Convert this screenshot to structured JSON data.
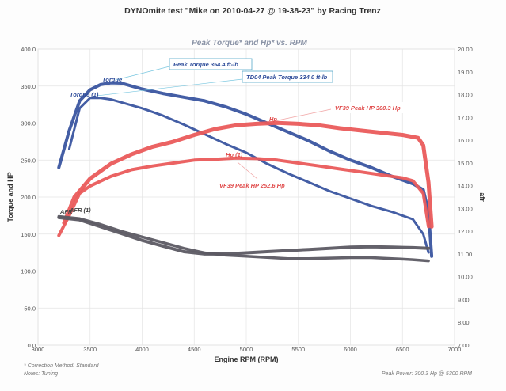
{
  "title": "DYNOmite test \"Mike on 2010-04-27 @ 19-38-23\" by Racing Trenz",
  "subtitle": "Peak Torque* and Hp* vs. RPM",
  "footer": {
    "correction": "* Correction Method: Standard",
    "notes": "Notes: Tuning",
    "peak_power": "Peak Power: 300.3 Hp @ 5300 RPM"
  },
  "annotations": {
    "peak_torque": "Peak Torque 354.4 ft-lb",
    "td04_peak_torque": "TD04 Peak Torque 334.0 ft-lb",
    "vf39_peak_hp": "VF39 Peak HP 300.3 Hp",
    "vf39_peak_hp_2": "VF39 Peak HP 252.6 Hp",
    "torque_label": "Torque",
    "torque1_label": "Torque (1)",
    "hp_label": "Hp",
    "hp1_label": "Hp (1)",
    "afr_label": "AFR",
    "afr1_label": "AFR (1)"
  },
  "chart_data": {
    "type": "line",
    "title": "Peak Torque* and Hp* vs. RPM",
    "xlabel": "Engine RPM (RPM)",
    "ylabel": "Torque and HP",
    "y2label": "afr",
    "xlim": [
      3000,
      7000
    ],
    "ylim": [
      0,
      400
    ],
    "y2lim": [
      7,
      20
    ],
    "xticks": [
      "3000",
      "3500",
      "4000",
      "4500",
      "5000",
      "5500",
      "6000",
      "6500",
      "7000"
    ],
    "yticks": [
      "0.0",
      "50.0",
      "100.0",
      "150.0",
      "200.0",
      "250.0",
      "300.0",
      "350.0",
      "400.0"
    ],
    "y2ticks": [
      "7.00",
      "8.00",
      "9.00",
      "10.00",
      "11.00",
      "12.00",
      "13.00",
      "14.00",
      "15.00",
      "16.00",
      "17.00",
      "18.00",
      "19.00",
      "20.00"
    ],
    "grid": true,
    "colors": {
      "torque": "#3a55a0",
      "hp": "#ea5b5b",
      "afr": "#5c5a63"
    },
    "series": [
      {
        "name": "Torque",
        "axis": "left",
        "color": "#3a55a0",
        "x": [
          3200,
          3300,
          3400,
          3500,
          3600,
          3700,
          3800,
          3900,
          4000,
          4200,
          4400,
          4600,
          4800,
          5000,
          5200,
          5400,
          5600,
          5800,
          6000,
          6200,
          6400,
          6600,
          6700,
          6750,
          6780
        ],
        "y": [
          240,
          290,
          330,
          345,
          352,
          354.4,
          354,
          350,
          346,
          340,
          335,
          330,
          322,
          312,
          300,
          288,
          276,
          262,
          250,
          240,
          228,
          218,
          210,
          180,
          120
        ]
      },
      {
        "name": "Torque (1)",
        "axis": "left",
        "color": "#3a55a0",
        "x": [
          3300,
          3400,
          3500,
          3600,
          3700,
          3800,
          4000,
          4200,
          4400,
          4600,
          4800,
          5000,
          5200,
          5400,
          5600,
          5800,
          6000,
          6200,
          6400,
          6600,
          6700,
          6750
        ],
        "y": [
          265,
          320,
          334,
          334,
          332,
          328,
          320,
          310,
          298,
          285,
          272,
          260,
          245,
          232,
          220,
          208,
          198,
          188,
          180,
          170,
          150,
          125
        ]
      },
      {
        "name": "Hp",
        "axis": "left",
        "color": "#ea5b5b",
        "x": [
          3250,
          3350,
          3500,
          3700,
          3900,
          4100,
          4300,
          4500,
          4700,
          4900,
          5100,
          5300,
          5500,
          5700,
          5900,
          6100,
          6300,
          6500,
          6650,
          6700,
          6750,
          6780
        ],
        "y": [
          165,
          200,
          225,
          245,
          258,
          268,
          275,
          284,
          292,
          297,
          299,
          300.3,
          299,
          297,
          293,
          290,
          287,
          284,
          280,
          270,
          220,
          160
        ]
      },
      {
        "name": "Hp (1)",
        "axis": "left",
        "color": "#ea5b5b",
        "x": [
          3200,
          3300,
          3400,
          3500,
          3700,
          3900,
          4100,
          4300,
          4500,
          4700,
          4900,
          5100,
          5300,
          5500,
          5700,
          5900,
          6100,
          6300,
          6500,
          6600,
          6700,
          6750
        ],
        "y": [
          148,
          175,
          205,
          215,
          228,
          237,
          242,
          246,
          250,
          251,
          252.6,
          252,
          250,
          246,
          242,
          238,
          234,
          230,
          226,
          222,
          205,
          160
        ]
      },
      {
        "name": "AFR",
        "axis": "right",
        "color": "#5c5a63",
        "x": [
          3200,
          3400,
          3600,
          3800,
          4000,
          4200,
          4400,
          4600,
          4800,
          5000,
          5200,
          5400,
          5600,
          5800,
          6000,
          6200,
          6400,
          6600,
          6750
        ],
        "y": [
          12.6,
          12.5,
          12.2,
          11.9,
          11.6,
          11.35,
          11.1,
          11.0,
          11.0,
          11.05,
          11.1,
          11.15,
          11.2,
          11.25,
          11.3,
          11.32,
          11.3,
          11.28,
          11.25
        ]
      },
      {
        "name": "AFR (1)",
        "axis": "right",
        "color": "#5c5a63",
        "x": [
          3200,
          3400,
          3600,
          3800,
          4000,
          4200,
          4400,
          4600,
          4800,
          5000,
          5200,
          5400,
          5600,
          5800,
          6000,
          6200,
          6400,
          6600,
          6750
        ],
        "y": [
          12.65,
          12.55,
          12.3,
          12.0,
          11.75,
          11.5,
          11.25,
          11.05,
          10.95,
          10.9,
          10.85,
          10.8,
          10.8,
          10.82,
          10.84,
          10.84,
          10.8,
          10.75,
          10.7
        ]
      }
    ]
  }
}
